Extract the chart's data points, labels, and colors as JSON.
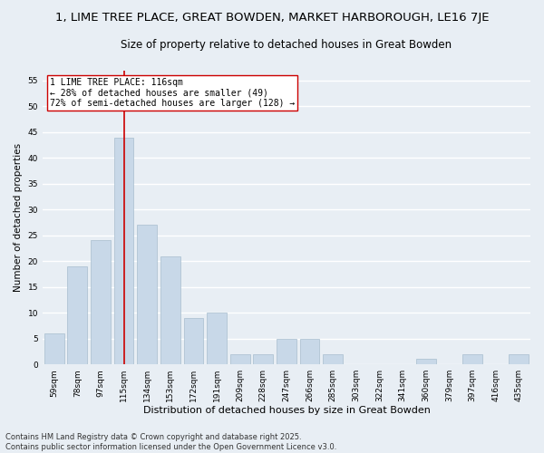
{
  "title": "1, LIME TREE PLACE, GREAT BOWDEN, MARKET HARBOROUGH, LE16 7JE",
  "subtitle": "Size of property relative to detached houses in Great Bowden",
  "xlabel": "Distribution of detached houses by size in Great Bowden",
  "ylabel": "Number of detached properties",
  "categories": [
    "59sqm",
    "78sqm",
    "97sqm",
    "115sqm",
    "134sqm",
    "153sqm",
    "172sqm",
    "191sqm",
    "209sqm",
    "228sqm",
    "247sqm",
    "266sqm",
    "285sqm",
    "303sqm",
    "322sqm",
    "341sqm",
    "360sqm",
    "379sqm",
    "397sqm",
    "416sqm",
    "435sqm"
  ],
  "values": [
    6,
    19,
    24,
    44,
    27,
    21,
    9,
    10,
    2,
    2,
    5,
    5,
    2,
    0,
    0,
    0,
    1,
    0,
    2,
    0,
    2
  ],
  "bar_color": "#c8d8e8",
  "bar_edgecolor": "#a8bece",
  "vline_x_index": 3,
  "vline_color": "#cc0000",
  "annotation_text": "1 LIME TREE PLACE: 116sqm\n← 28% of detached houses are smaller (49)\n72% of semi-detached houses are larger (128) →",
  "annotation_box_color": "#ffffff",
  "annotation_box_edgecolor": "#cc0000",
  "ylim": [
    0,
    57
  ],
  "yticks": [
    0,
    5,
    10,
    15,
    20,
    25,
    30,
    35,
    40,
    45,
    50,
    55
  ],
  "background_color": "#e8eef4",
  "grid_color": "#ffffff",
  "footer_text": "Contains HM Land Registry data © Crown copyright and database right 2025.\nContains public sector information licensed under the Open Government Licence v3.0.",
  "title_fontsize": 9.5,
  "subtitle_fontsize": 8.5,
  "xlabel_fontsize": 8,
  "ylabel_fontsize": 7.5,
  "tick_fontsize": 6.5,
  "annotation_fontsize": 7,
  "footer_fontsize": 6
}
